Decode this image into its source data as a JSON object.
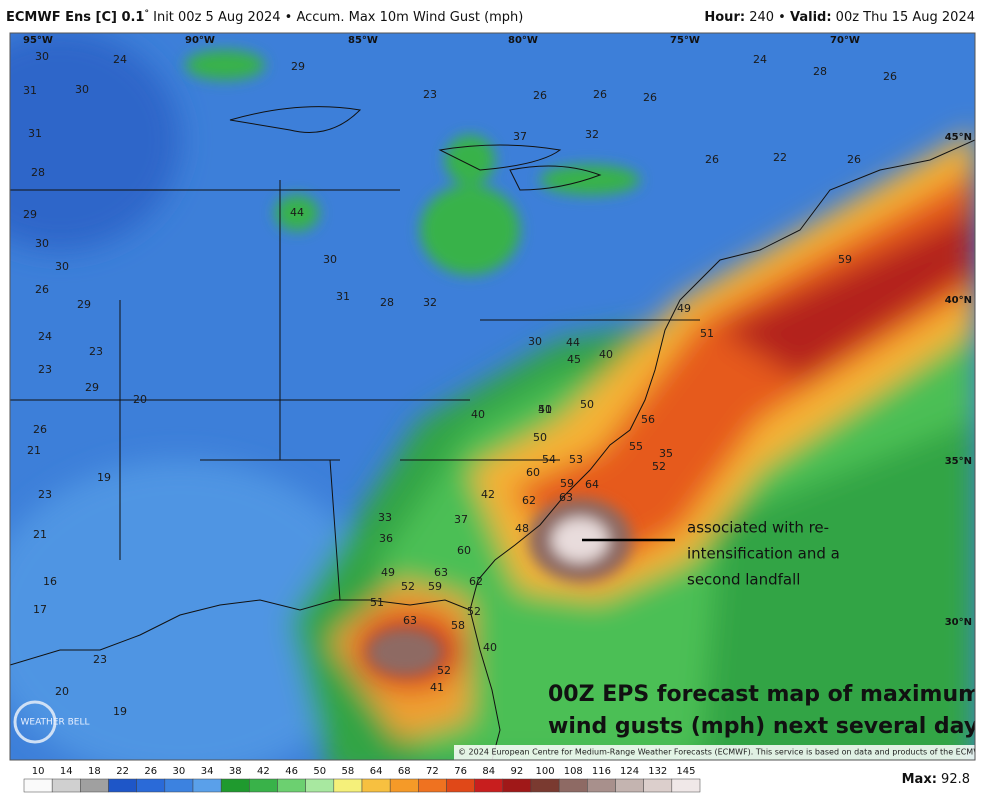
{
  "header": {
    "model": "ECMWF Ens [C] 0.1",
    "degree": "°",
    "description": "Init 00z 5 Aug 2024 • Accum. Max 10m Wind Gust (mph)",
    "hour_label": "Hour:",
    "hour_value": 240,
    "separator": "•",
    "valid_label": "Valid:",
    "valid_value": "00z Thu 15 Aug 2024"
  },
  "longitude_labels": [
    "95°W",
    "90°W",
    "85°W",
    "80°W",
    "75°W",
    "70°W"
  ],
  "latitude_labels": [
    "45°N",
    "40°N",
    "35°N",
    "30°N"
  ],
  "map_values": [
    30,
    24,
    31,
    30,
    31,
    28,
    29,
    30,
    30,
    26,
    29,
    24,
    23,
    23,
    29,
    20,
    26,
    21,
    19,
    23,
    21,
    16,
    17,
    23,
    20,
    19,
    44,
    29,
    23,
    26,
    26,
    26,
    24,
    28,
    26,
    37,
    32,
    26,
    22,
    26,
    30,
    31,
    28,
    32,
    30,
    44,
    45,
    50,
    50,
    50,
    60,
    54,
    53,
    59,
    63,
    64,
    62,
    42,
    48,
    60,
    63,
    52,
    59,
    62,
    52,
    63,
    58,
    52,
    41,
    40,
    51,
    49,
    36,
    33,
    37,
    40,
    41,
    40,
    49,
    51,
    55,
    52,
    35,
    56,
    59
  ],
  "annotation": {
    "lines": [
      "associated with re-",
      "intensification and a",
      "second landfall"
    ]
  },
  "caption": {
    "lines": [
      "00Z EPS forecast map of maximum",
      "wind gusts (mph) next several days"
    ]
  },
  "copyright": "© 2024 European Centre for Medium-Range Weather Forecasts (ECMWF). This service is based on data and products of the ECMWF.",
  "logo": "WEATHER BELL",
  "colorbar": {
    "levels": [
      10,
      14,
      18,
      22,
      26,
      30,
      34,
      38,
      42,
      46,
      50,
      58,
      64,
      68,
      72,
      76,
      84,
      92,
      100,
      108,
      116,
      124,
      132,
      145
    ],
    "colors": [
      "#fafafa",
      "#d0d0d0",
      "#a0a0a0",
      "#1e56c8",
      "#2a6ad8",
      "#3c82e0",
      "#5aa0ea",
      "#1f9a2e",
      "#39b249",
      "#6cd070",
      "#a8e8a0",
      "#f5f07a",
      "#f7c040",
      "#f59a28",
      "#ef7220",
      "#e04818",
      "#c81e1e",
      "#a01818",
      "#7a3a30",
      "#8e6a64",
      "#a8908c",
      "#c4b4b0",
      "#dccfcc",
      "#f0e8e8"
    ]
  },
  "max": {
    "label": "Max:",
    "value": 92.8
  }
}
